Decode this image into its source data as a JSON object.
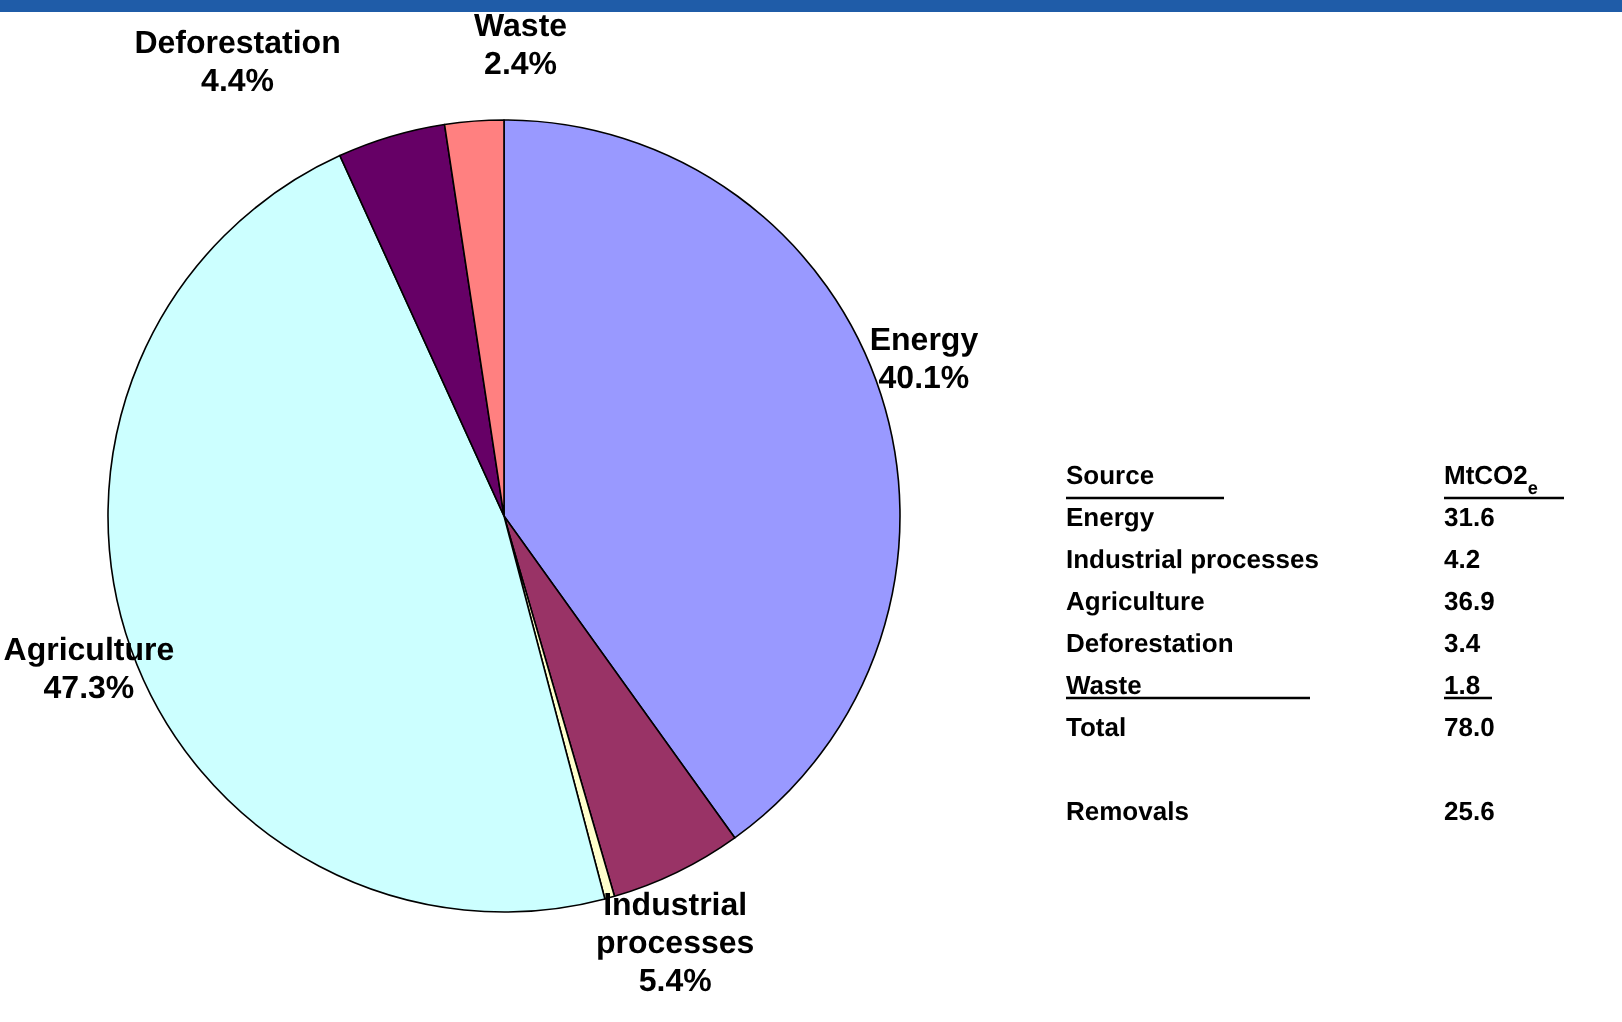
{
  "chart_data": {
    "type": "pie",
    "categories": [
      "Energy",
      "Industrial processes",
      null,
      "Agriculture",
      "Deforestation",
      "Waste"
    ],
    "values": [
      40.1,
      5.4,
      0.4,
      47.3,
      4.4,
      2.4
    ],
    "value_labels": [
      "40.1%",
      "5.4%",
      null,
      "47.3%",
      "4.4%",
      "2.4%"
    ],
    "colors": [
      "#9999ff",
      "#993366",
      "#ffffcc",
      "#ccffff",
      "#660066",
      "#ff8080"
    ],
    "annotations": [
      "Source",
      "MtCO2$_{e}$",
      "Energy",
      "31.6",
      "Industrial processes",
      "4.2",
      "Agriculture",
      "36.9",
      "Deforestation",
      "3.4",
      "Waste",
      "1.8",
      "Total",
      "78.0",
      "Removals",
      "25.6"
    ]
  }
}
